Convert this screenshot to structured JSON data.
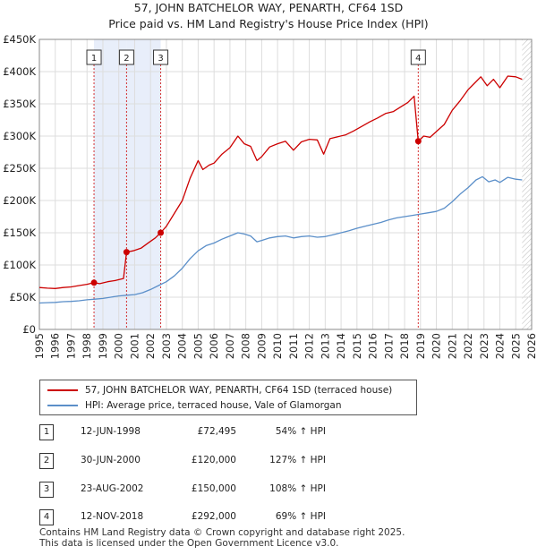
{
  "chart_data": {
    "type": "line",
    "title": "57, JOHN BATCHELOR WAY, PENARTH, CF64 1SD",
    "subtitle": "Price paid vs. HM Land Registry's House Price Index (HPI)",
    "xlabel": "",
    "ylabel": "",
    "xlim": [
      1995,
      2026
    ],
    "ylim": [
      0,
      450000
    ],
    "y_ticks": [
      0,
      50000,
      100000,
      150000,
      200000,
      250000,
      300000,
      350000,
      400000,
      450000
    ],
    "y_tick_labels": [
      "£0",
      "£50K",
      "£100K",
      "£150K",
      "£200K",
      "£250K",
      "£300K",
      "£350K",
      "£400K",
      "£450K"
    ],
    "x_ticks": [
      1995,
      1996,
      1997,
      1998,
      1999,
      2000,
      2001,
      2002,
      2003,
      2004,
      2005,
      2006,
      2007,
      2008,
      2009,
      2010,
      2011,
      2012,
      2013,
      2014,
      2015,
      2016,
      2017,
      2018,
      2019,
      2020,
      2021,
      2022,
      2023,
      2024,
      2025,
      2026
    ],
    "grid": true,
    "legend_placement": "below",
    "series": [
      {
        "name": "57, JOHN BATCHELOR WAY, PENARTH, CF64 1SD (terraced house)",
        "color": "#cc0000",
        "x": [
          1995.0,
          1995.5,
          1996.0,
          1996.5,
          1997.0,
          1997.5,
          1998.0,
          1998.44,
          1998.8,
          1999.3,
          1999.8,
          2000.3,
          2000.49,
          2000.9,
          2001.4,
          2001.9,
          2002.3,
          2002.64,
          2003.0,
          2003.5,
          2004.0,
          2004.5,
          2005.0,
          2005.3,
          2005.7,
          2006.0,
          2006.5,
          2007.0,
          2007.5,
          2007.9,
          2008.3,
          2008.7,
          2009.0,
          2009.5,
          2010.0,
          2010.5,
          2011.0,
          2011.5,
          2012.0,
          2012.5,
          2012.9,
          2013.3,
          2013.8,
          2014.3,
          2014.8,
          2015.3,
          2015.8,
          2016.3,
          2016.8,
          2017.3,
          2017.8,
          2018.2,
          2018.6,
          2018.86,
          2019.2,
          2019.6,
          2020.0,
          2020.5,
          2021.0,
          2021.5,
          2022.0,
          2022.4,
          2022.8,
          2023.2,
          2023.6,
          2024.0,
          2024.5,
          2025.0,
          2025.4
        ],
        "values": [
          65000,
          64000,
          63500,
          65000,
          66000,
          68000,
          70000,
          72495,
          71000,
          74000,
          76000,
          79000,
          120000,
          122000,
          126000,
          135000,
          142000,
          150000,
          160000,
          180000,
          200000,
          235000,
          262000,
          248000,
          255000,
          258000,
          272000,
          282000,
          300000,
          288000,
          284000,
          262000,
          268000,
          283000,
          288000,
          292000,
          278000,
          291000,
          295000,
          294000,
          272000,
          296000,
          299000,
          302000,
          308000,
          315000,
          322000,
          328000,
          335000,
          338000,
          346000,
          352000,
          362000,
          292000,
          300000,
          298000,
          307000,
          318000,
          340000,
          355000,
          372000,
          382000,
          392000,
          378000,
          388000,
          375000,
          393000,
          392000,
          388000
        ]
      },
      {
        "name": "HPI: Average price, terraced house, Vale of Glamorgan",
        "color": "#5b8fc9",
        "x": [
          1995.0,
          1995.5,
          1996.0,
          1996.5,
          1997.0,
          1997.5,
          1998.0,
          1998.5,
          1999.0,
          1999.5,
          2000.0,
          2000.5,
          2001.0,
          2001.5,
          2002.0,
          2002.5,
          2003.0,
          2003.5,
          2004.0,
          2004.5,
          2005.0,
          2005.5,
          2006.0,
          2006.5,
          2007.0,
          2007.5,
          2007.9,
          2008.3,
          2008.7,
          2009.0,
          2009.5,
          2010.0,
          2010.5,
          2011.0,
          2011.5,
          2012.0,
          2012.5,
          2013.0,
          2013.5,
          2014.0,
          2014.5,
          2015.0,
          2015.5,
          2016.0,
          2016.5,
          2017.0,
          2017.5,
          2018.0,
          2018.5,
          2019.0,
          2019.5,
          2020.0,
          2020.5,
          2021.0,
          2021.5,
          2022.0,
          2022.5,
          2022.9,
          2023.3,
          2023.7,
          2024.0,
          2024.5,
          2025.0,
          2025.4
        ],
        "values": [
          41000,
          41500,
          42000,
          43000,
          43500,
          44500,
          46000,
          47000,
          48000,
          50000,
          52000,
          53000,
          54000,
          57000,
          62000,
          68000,
          74000,
          83000,
          95000,
          110000,
          122000,
          130000,
          134000,
          140000,
          145000,
          150000,
          148000,
          145000,
          136000,
          138000,
          142000,
          144000,
          145000,
          142000,
          144000,
          145000,
          143000,
          144000,
          147000,
          150000,
          153000,
          157000,
          160000,
          163000,
          166000,
          170000,
          173000,
          175000,
          177000,
          179000,
          181000,
          183000,
          188000,
          198000,
          210000,
          220000,
          232000,
          237000,
          229000,
          232000,
          228000,
          236000,
          233000,
          232000
        ]
      }
    ],
    "markers": [
      {
        "label": "1",
        "x": 1998.44,
        "value": 72495
      },
      {
        "label": "2",
        "x": 2000.49,
        "value": 120000
      },
      {
        "label": "3",
        "x": 2002.64,
        "value": 150000
      },
      {
        "label": "4",
        "x": 2018.86,
        "value": 292000
      }
    ],
    "shaded_spans": [
      [
        1998.44,
        2000.49
      ],
      [
        2000.49,
        2002.64
      ]
    ],
    "forecast_from": 2025.4
  },
  "legend": {
    "property_label": "57, JOHN BATCHELOR WAY, PENARTH, CF64 1SD (terraced house)",
    "hpi_label": "HPI: Average price, terraced house, Vale of Glamorgan"
  },
  "sales": [
    {
      "num": "1",
      "date": "12-JUN-1998",
      "price": "£72,495",
      "hpi": "54% ↑ HPI"
    },
    {
      "num": "2",
      "date": "30-JUN-2000",
      "price": "£120,000",
      "hpi": "127% ↑ HPI"
    },
    {
      "num": "3",
      "date": "23-AUG-2002",
      "price": "£150,000",
      "hpi": "108% ↑ HPI"
    },
    {
      "num": "4",
      "date": "12-NOV-2018",
      "price": "£292,000",
      "hpi": "69% ↑ HPI"
    }
  ],
  "footer": {
    "line1": "Contains HM Land Registry data © Crown copyright and database right 2025.",
    "line2": "This data is licensed under the Open Government Licence v3.0."
  }
}
